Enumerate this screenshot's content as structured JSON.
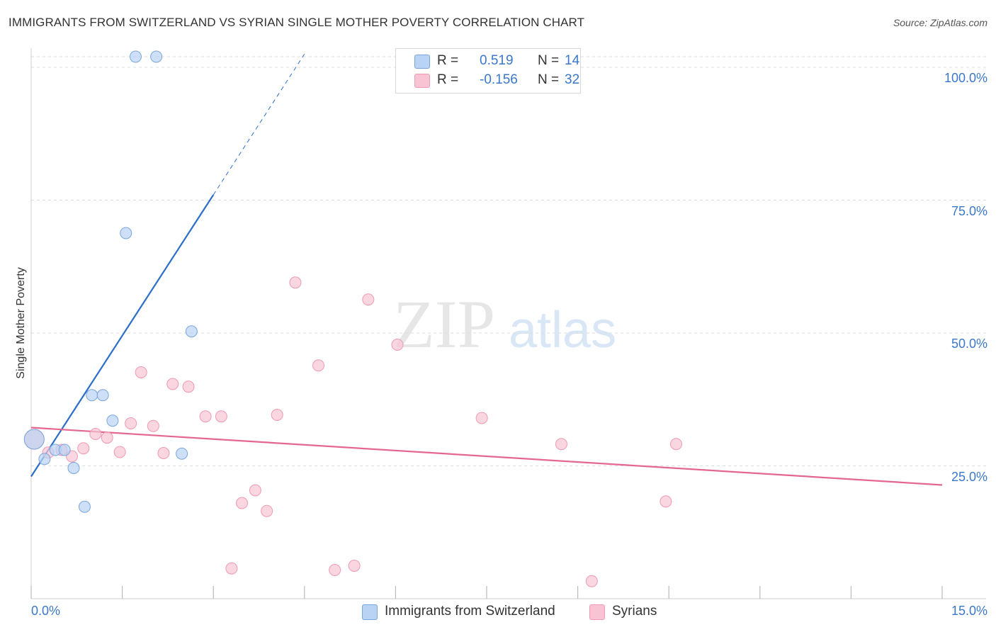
{
  "title": "IMMIGRANTS FROM SWITZERLAND VS SYRIAN SINGLE MOTHER POVERTY CORRELATION CHART",
  "source": "Source: ZipAtlas.com",
  "watermark": {
    "zip": "ZIP",
    "atlas": "atlas"
  },
  "colors": {
    "blue_fill": "#b8d3f4",
    "blue_stroke": "#7aa6dc",
    "blue_line": "#2b6fc9",
    "pink_fill": "#f8c4d4",
    "pink_stroke": "#ee9ab4",
    "pink_line": "#e5668e",
    "axis_text": "#3a78c9",
    "grid": "#dddddd"
  },
  "stats": [
    {
      "r_label": "R =",
      "r_value": "0.519",
      "n_label": "N =",
      "n_value": "14",
      "color": "#b8d3f4",
      "border": "#7aa6dc"
    },
    {
      "r_label": "R =",
      "r_value": "-0.156",
      "n_label": "N =",
      "n_value": "32",
      "color": "#f8c4d4",
      "border": "#ee9ab4"
    }
  ],
  "legend": [
    {
      "label": "Immigrants from Switzerland",
      "color": "#b8d3f4",
      "border": "#7aa6dc"
    },
    {
      "label": "Syrians",
      "color": "#f8c4d4",
      "border": "#ee9ab4"
    }
  ],
  "chart_data": {
    "type": "scatter",
    "title": "IMMIGRANTS FROM SWITZERLAND VS SYRIAN SINGLE MOTHER POVERTY CORRELATION CHART",
    "xlabel": "",
    "ylabel": "Single Mother Poverty",
    "xlim": [
      0,
      15
    ],
    "ylim": [
      0,
      102
    ],
    "x_tick_labels": [
      "0.0%",
      "15.0%"
    ],
    "y_ticks": [
      25,
      50,
      75,
      100
    ],
    "y_tick_labels": [
      "25.0%",
      "50.0%",
      "75.0%",
      "100.0%"
    ],
    "grid": "horizontal dashed",
    "series": [
      {
        "name": "Immigrants from Switzerland",
        "color": "#b8d3f4",
        "stroke": "#7aa6dc",
        "points": [
          {
            "x": 0.05,
            "y": 30.0,
            "big": true
          },
          {
            "x": 0.22,
            "y": 26.3
          },
          {
            "x": 0.4,
            "y": 28.0
          },
          {
            "x": 0.55,
            "y": 28.0
          },
          {
            "x": 0.7,
            "y": 24.6
          },
          {
            "x": 0.88,
            "y": 17.3
          },
          {
            "x": 1.0,
            "y": 38.3
          },
          {
            "x": 1.18,
            "y": 38.3
          },
          {
            "x": 1.34,
            "y": 33.5
          },
          {
            "x": 1.56,
            "y": 68.8
          },
          {
            "x": 1.72,
            "y": 102.0
          },
          {
            "x": 2.06,
            "y": 102.0
          },
          {
            "x": 2.48,
            "y": 27.3
          },
          {
            "x": 2.64,
            "y": 50.3
          }
        ],
        "trend": {
          "x_start": 0.0,
          "y_start": 23.0,
          "x_end": 3.0,
          "y_end": 76.0,
          "x_dash_end": 4.5,
          "y_dash_end": 102.5
        }
      },
      {
        "name": "Syrians",
        "color": "#f8c4d4",
        "stroke": "#ee9ab4",
        "points": [
          {
            "x": 0.05,
            "y": 30.0,
            "big": true
          },
          {
            "x": 0.28,
            "y": 27.5
          },
          {
            "x": 0.5,
            "y": 28.0
          },
          {
            "x": 0.67,
            "y": 26.8
          },
          {
            "x": 0.86,
            "y": 28.3
          },
          {
            "x": 1.06,
            "y": 31.0
          },
          {
            "x": 1.25,
            "y": 30.3
          },
          {
            "x": 1.46,
            "y": 27.6
          },
          {
            "x": 1.64,
            "y": 33.0
          },
          {
            "x": 1.81,
            "y": 42.6
          },
          {
            "x": 2.01,
            "y": 32.5
          },
          {
            "x": 2.18,
            "y": 27.4
          },
          {
            "x": 2.33,
            "y": 40.4
          },
          {
            "x": 2.59,
            "y": 39.9
          },
          {
            "x": 2.87,
            "y": 34.3
          },
          {
            "x": 3.13,
            "y": 34.3
          },
          {
            "x": 3.3,
            "y": 5.7
          },
          {
            "x": 3.47,
            "y": 18.0
          },
          {
            "x": 3.69,
            "y": 20.4
          },
          {
            "x": 3.88,
            "y": 16.5
          },
          {
            "x": 4.05,
            "y": 34.6
          },
          {
            "x": 4.35,
            "y": 59.5
          },
          {
            "x": 4.73,
            "y": 43.9
          },
          {
            "x": 5.0,
            "y": 5.4
          },
          {
            "x": 5.32,
            "y": 6.2
          },
          {
            "x": 5.55,
            "y": 56.3
          },
          {
            "x": 6.03,
            "y": 47.8
          },
          {
            "x": 7.42,
            "y": 34.0
          },
          {
            "x": 8.73,
            "y": 29.1
          },
          {
            "x": 9.23,
            "y": 3.3
          },
          {
            "x": 10.45,
            "y": 18.3
          },
          {
            "x": 10.62,
            "y": 29.1
          }
        ],
        "trend": {
          "x_start": 0.0,
          "y_start": 32.2,
          "x_end": 15.0,
          "y_end": 21.4
        }
      }
    ]
  }
}
